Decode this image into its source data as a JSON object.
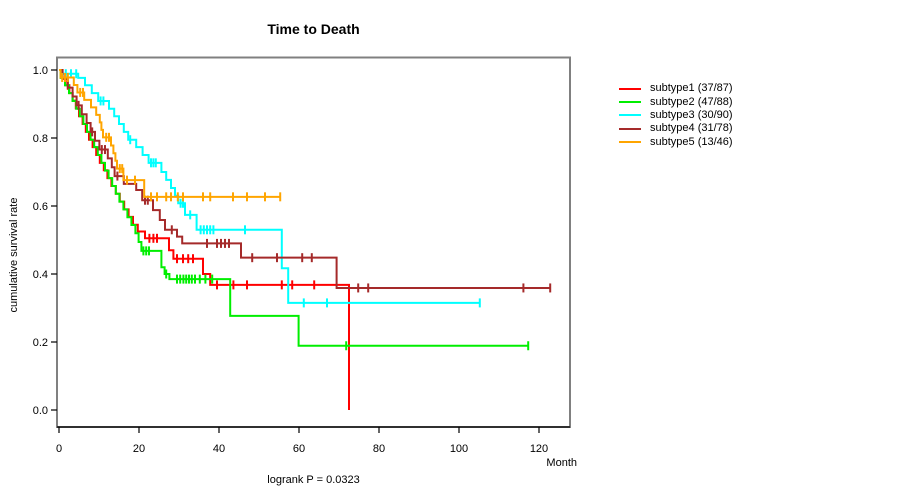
{
  "title": "Time to Death",
  "axes": {
    "x_label": "Month",
    "y_label": "cumulative survival rate",
    "x_tick_labels": [
      "0",
      "20",
      "40",
      "60",
      "80",
      "100",
      "120"
    ],
    "y_tick_labels": [
      "0.0",
      "0.2",
      "0.4",
      "0.6",
      "0.8",
      "1.0"
    ]
  },
  "annotation": "logrank P = 0.0323",
  "chart_data": {
    "type": "line",
    "subtype": "kaplan-meier-step-survival",
    "title": "Time to Death",
    "xlabel": "Month",
    "ylabel": "cumulative survival rate",
    "annotation": "logrank P = 0.0323",
    "xlim": [
      0,
      127
    ],
    "ylim": [
      0,
      1.0
    ],
    "x_tick_values": [
      0,
      20,
      40,
      60,
      80,
      100,
      120
    ],
    "y_tick_values": [
      0.0,
      0.2,
      0.4,
      0.6,
      0.8,
      1.0
    ],
    "grid": false,
    "legend_position": "right-outside",
    "box_color": "#808080",
    "axis_color": "#000000",
    "series": [
      {
        "name": "subtype1 (37/87)",
        "color": "#FF0000",
        "steps": [
          [
            0,
            1.0
          ],
          [
            0.7,
            0.977
          ],
          [
            1.6,
            0.955
          ],
          [
            2.6,
            0.932
          ],
          [
            3.4,
            0.91
          ],
          [
            4.2,
            0.887
          ],
          [
            5.0,
            0.864
          ],
          [
            5.9,
            0.841
          ],
          [
            6.7,
            0.818
          ],
          [
            7.5,
            0.795
          ],
          [
            8.4,
            0.773
          ],
          [
            9.3,
            0.75
          ],
          [
            10.2,
            0.727
          ],
          [
            11.2,
            0.705
          ],
          [
            12.1,
            0.682
          ],
          [
            13.1,
            0.659
          ],
          [
            14.2,
            0.636
          ],
          [
            15.2,
            0.613
          ],
          [
            16.3,
            0.59
          ],
          [
            17.4,
            0.568
          ],
          [
            18.5,
            0.545
          ],
          [
            19.7,
            0.525
          ],
          [
            21.5,
            0.505
          ],
          [
            27.5,
            0.47
          ],
          [
            28.6,
            0.445
          ],
          [
            36.0,
            0.4
          ],
          [
            37.8,
            0.368
          ],
          [
            72.5,
            0.0
          ]
        ],
        "censors": [
          [
            2.2,
            0.955
          ],
          [
            22.6,
            0.505
          ],
          [
            23.6,
            0.505
          ],
          [
            24.5,
            0.505
          ],
          [
            29.5,
            0.445
          ],
          [
            31.0,
            0.445
          ],
          [
            32.3,
            0.445
          ],
          [
            33.5,
            0.445
          ],
          [
            39.5,
            0.368
          ],
          [
            43.6,
            0.368
          ],
          [
            47.0,
            0.368
          ],
          [
            55.7,
            0.368
          ],
          [
            58.3,
            0.368
          ],
          [
            63.8,
            0.368
          ]
        ]
      },
      {
        "name": "subtype2 (47/88)",
        "color": "#00EE00",
        "steps": [
          [
            0,
            1.0
          ],
          [
            0.4,
            0.977
          ],
          [
            1.5,
            0.955
          ],
          [
            2.5,
            0.932
          ],
          [
            3.4,
            0.909
          ],
          [
            4.3,
            0.886
          ],
          [
            5.2,
            0.864
          ],
          [
            6.1,
            0.841
          ],
          [
            7.0,
            0.818
          ],
          [
            7.9,
            0.795
          ],
          [
            8.8,
            0.773
          ],
          [
            9.7,
            0.75
          ],
          [
            10.6,
            0.727
          ],
          [
            11.5,
            0.704
          ],
          [
            12.4,
            0.682
          ],
          [
            13.3,
            0.659
          ],
          [
            14.2,
            0.636
          ],
          [
            15.1,
            0.613
          ],
          [
            16.1,
            0.59
          ],
          [
            17.1,
            0.567
          ],
          [
            18.1,
            0.544
          ],
          [
            19.1,
            0.52
          ],
          [
            19.9,
            0.494
          ],
          [
            20.6,
            0.468
          ],
          [
            25.6,
            0.42
          ],
          [
            26.4,
            0.4
          ],
          [
            27.6,
            0.385
          ],
          [
            42.8,
            0.277
          ],
          [
            59.9,
            0.189
          ],
          [
            117.3,
            0.189
          ]
        ],
        "censors": [
          [
            21.1,
            0.468
          ],
          [
            21.8,
            0.468
          ],
          [
            22.5,
            0.468
          ],
          [
            26.8,
            0.4
          ],
          [
            29.5,
            0.385
          ],
          [
            30.3,
            0.385
          ],
          [
            31.1,
            0.385
          ],
          [
            31.8,
            0.385
          ],
          [
            32.5,
            0.385
          ],
          [
            33.2,
            0.385
          ],
          [
            34.0,
            0.385
          ],
          [
            35.2,
            0.385
          ],
          [
            36.6,
            0.385
          ],
          [
            38.3,
            0.385
          ],
          [
            71.8,
            0.189
          ],
          [
            117.3,
            0.189
          ]
        ]
      },
      {
        "name": "subtype3 (30/90)",
        "color": "#00FFFF",
        "steps": [
          [
            0,
            1.0
          ],
          [
            0.5,
            0.989
          ],
          [
            4.8,
            0.977
          ],
          [
            6.5,
            0.955
          ],
          [
            8.2,
            0.932
          ],
          [
            9.8,
            0.909
          ],
          [
            12.5,
            0.886
          ],
          [
            13.8,
            0.864
          ],
          [
            15.0,
            0.841
          ],
          [
            16.2,
            0.818
          ],
          [
            17.3,
            0.795
          ],
          [
            19.3,
            0.773
          ],
          [
            20.9,
            0.75
          ],
          [
            22.4,
            0.727
          ],
          [
            25.6,
            0.7
          ],
          [
            26.8,
            0.677
          ],
          [
            28.0,
            0.653
          ],
          [
            29.0,
            0.63
          ],
          [
            29.8,
            0.608
          ],
          [
            31.5,
            0.574
          ],
          [
            34.4,
            0.53
          ],
          [
            55.7,
            0.417
          ],
          [
            57.3,
            0.315
          ],
          [
            105.2,
            0.315
          ]
        ],
        "censors": [
          [
            1.7,
            0.989
          ],
          [
            3.0,
            0.989
          ],
          [
            4.3,
            0.989
          ],
          [
            10.4,
            0.909
          ],
          [
            11.1,
            0.909
          ],
          [
            17.8,
            0.795
          ],
          [
            23.0,
            0.727
          ],
          [
            23.6,
            0.727
          ],
          [
            24.2,
            0.727
          ],
          [
            30.4,
            0.608
          ],
          [
            31.0,
            0.608
          ],
          [
            32.8,
            0.574
          ],
          [
            35.4,
            0.53
          ],
          [
            36.2,
            0.53
          ],
          [
            37.0,
            0.53
          ],
          [
            37.8,
            0.53
          ],
          [
            38.6,
            0.53
          ],
          [
            46.5,
            0.53
          ],
          [
            61.2,
            0.315
          ],
          [
            67.0,
            0.315
          ],
          [
            105.2,
            0.315
          ]
        ]
      },
      {
        "name": "subtype4 (31/78)",
        "color": "#A52A2A",
        "steps": [
          [
            0,
            1.0
          ],
          [
            0.9,
            0.974
          ],
          [
            2.2,
            0.948
          ],
          [
            3.4,
            0.922
          ],
          [
            4.4,
            0.896
          ],
          [
            5.7,
            0.87
          ],
          [
            6.9,
            0.844
          ],
          [
            7.9,
            0.818
          ],
          [
            9.0,
            0.792
          ],
          [
            10.1,
            0.766
          ],
          [
            12.2,
            0.74
          ],
          [
            13.2,
            0.714
          ],
          [
            13.9,
            0.688
          ],
          [
            16.2,
            0.665
          ],
          [
            19.3,
            0.647
          ],
          [
            20.8,
            0.617
          ],
          [
            23.5,
            0.588
          ],
          [
            25.2,
            0.559
          ],
          [
            26.5,
            0.53
          ],
          [
            29.5,
            0.51
          ],
          [
            30.8,
            0.49
          ],
          [
            45.5,
            0.448
          ],
          [
            69.4,
            0.359
          ],
          [
            122.8,
            0.359
          ]
        ],
        "censors": [
          [
            4.9,
            0.896
          ],
          [
            8.3,
            0.818
          ],
          [
            10.7,
            0.766
          ],
          [
            11.5,
            0.766
          ],
          [
            14.6,
            0.688
          ],
          [
            21.5,
            0.617
          ],
          [
            22.2,
            0.617
          ],
          [
            28.2,
            0.53
          ],
          [
            37.0,
            0.49
          ],
          [
            39.5,
            0.49
          ],
          [
            40.5,
            0.49
          ],
          [
            41.5,
            0.49
          ],
          [
            42.5,
            0.49
          ],
          [
            48.3,
            0.448
          ],
          [
            54.5,
            0.448
          ],
          [
            60.8,
            0.448
          ],
          [
            63.2,
            0.448
          ],
          [
            74.8,
            0.359
          ],
          [
            77.3,
            0.359
          ],
          [
            116.1,
            0.359
          ],
          [
            122.8,
            0.359
          ]
        ]
      },
      {
        "name": "subtype5 (13/46)",
        "color": "#FFA500",
        "steps": [
          [
            0,
            1.0
          ],
          [
            0.4,
            0.978
          ],
          [
            3.7,
            0.956
          ],
          [
            4.6,
            0.934
          ],
          [
            6.3,
            0.912
          ],
          [
            8.0,
            0.89
          ],
          [
            9.3,
            0.868
          ],
          [
            10.2,
            0.846
          ],
          [
            10.6,
            0.824
          ],
          [
            11.0,
            0.802
          ],
          [
            13.0,
            0.778
          ],
          [
            13.6,
            0.755
          ],
          [
            14.1,
            0.733
          ],
          [
            14.5,
            0.71
          ],
          [
            16.1,
            0.676
          ],
          [
            21.3,
            0.627
          ],
          [
            55.3,
            0.627
          ]
        ],
        "censors": [
          [
            0.8,
            0.978
          ],
          [
            1.5,
            0.978
          ],
          [
            2.2,
            0.978
          ],
          [
            5.3,
            0.934
          ],
          [
            6.0,
            0.934
          ],
          [
            11.8,
            0.802
          ],
          [
            12.5,
            0.802
          ],
          [
            15.2,
            0.71
          ],
          [
            15.8,
            0.71
          ],
          [
            17.0,
            0.676
          ],
          [
            19.0,
            0.676
          ],
          [
            23.0,
            0.627
          ],
          [
            24.5,
            0.627
          ],
          [
            26.8,
            0.627
          ],
          [
            28.0,
            0.627
          ],
          [
            29.7,
            0.627
          ],
          [
            31.0,
            0.627
          ],
          [
            36.0,
            0.627
          ],
          [
            37.8,
            0.627
          ],
          [
            43.5,
            0.627
          ],
          [
            47.0,
            0.627
          ],
          [
            51.5,
            0.627
          ],
          [
            55.3,
            0.627
          ]
        ]
      }
    ]
  }
}
